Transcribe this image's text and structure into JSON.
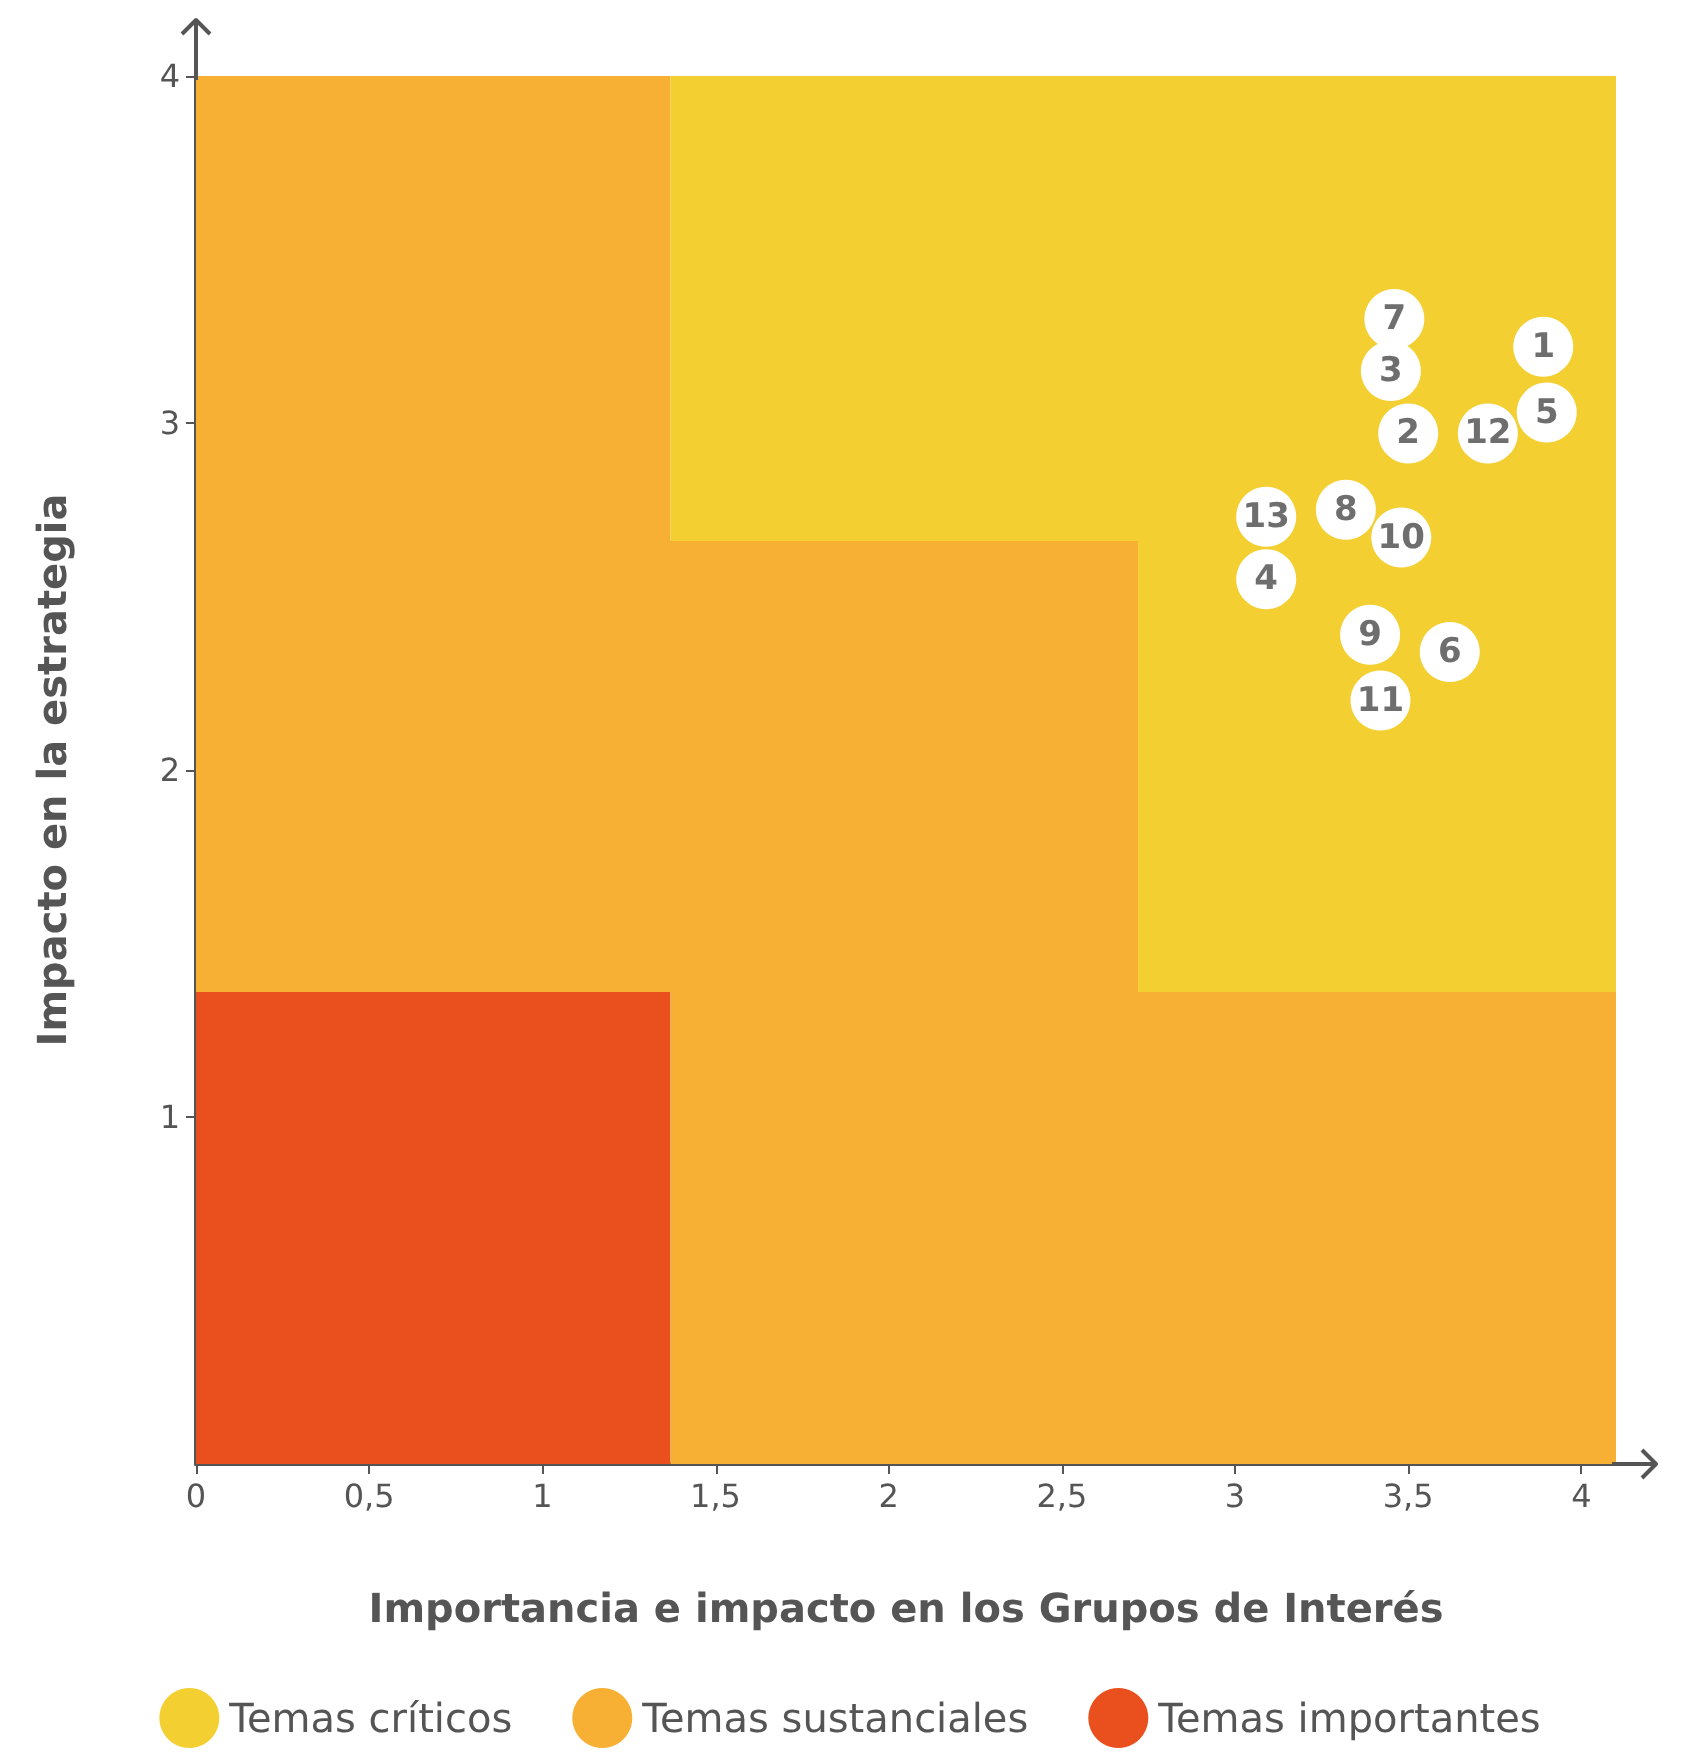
{
  "chart_data": {
    "type": "area",
    "stacked": true,
    "xlabel": "Importancia e impacto en los Grupos de Interés",
    "ylabel": "Impacto en la estrategia",
    "xlim": [
      0,
      4.1
    ],
    "ylim": [
      0,
      4
    ],
    "xticks": [
      0,
      {
        "value": 0.5,
        "label": "0,5"
      },
      1,
      {
        "value": 1.5,
        "label": "1,5"
      },
      2,
      {
        "value": 2.5,
        "label": "2,5"
      },
      3,
      {
        "value": 3.5,
        "label": "3,5"
      },
      4
    ],
    "yticks": [
      1,
      2,
      3,
      4
    ],
    "x": [
      0,
      1.37,
      1.37,
      2.72,
      2.72,
      4.1
    ],
    "grid": false,
    "legend": "bottom",
    "series": [
      {
        "name": "Temas importantes",
        "color": "#e9501e",
        "values": [
          1.36,
          1.36,
          0,
          0,
          0,
          0
        ]
      },
      {
        "name": "Temas sustanciales",
        "color": "#f7b034",
        "values": [
          2.64,
          2.64,
          2.66,
          2.66,
          1.36,
          1.36
        ]
      },
      {
        "name": "Temas críticos",
        "color": "#f4cf31",
        "values": [
          0,
          0,
          1.34,
          1.34,
          2.64,
          2.64
        ]
      },
      {
        "type": "scatter",
        "color": "#ffffff",
        "marker": "circle",
        "x": [
          3.89,
          3.5,
          3.45,
          3.09,
          3.9,
          3.62,
          3.46,
          3.32,
          3.39,
          3.48,
          3.42,
          3.73,
          3.09
        ],
        "values": [
          3.22,
          2.97,
          3.15,
          2.55,
          3.03,
          2.34,
          3.3,
          2.75,
          2.39,
          2.67,
          2.2,
          2.97,
          2.73
        ]
      }
    ],
    "annotations": [
      {
        "text": "1",
        "x": 3.89,
        "y": 3.22
      },
      {
        "text": "2",
        "x": 3.5,
        "y": 2.97
      },
      {
        "text": "3",
        "x": 3.45,
        "y": 3.15
      },
      {
        "text": "4",
        "x": 3.09,
        "y": 2.55
      },
      {
        "text": "5",
        "x": 3.9,
        "y": 3.03
      },
      {
        "text": "6",
        "x": 3.62,
        "y": 2.34
      },
      {
        "text": "7",
        "x": 3.46,
        "y": 3.3
      },
      {
        "text": "8",
        "x": 3.32,
        "y": 2.75
      },
      {
        "text": "9",
        "x": 3.39,
        "y": 2.39
      },
      {
        "text": "10",
        "x": 3.48,
        "y": 2.67
      },
      {
        "text": "11",
        "x": 3.42,
        "y": 2.2
      },
      {
        "text": "12",
        "x": 3.73,
        "y": 2.97
      },
      {
        "text": "13",
        "x": 3.09,
        "y": 2.73
      }
    ]
  }
}
